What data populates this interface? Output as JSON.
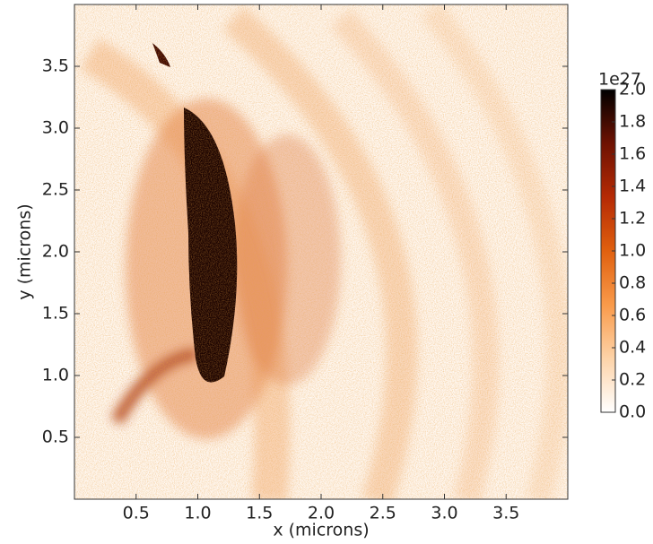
{
  "chart_data": {
    "type": "heatmap",
    "xlabel": "x (microns)",
    "ylabel": "y (microns)",
    "xlim": [
      0,
      4
    ],
    "ylim": [
      0,
      4
    ],
    "xticks": [
      0.5,
      {
        "value": 1,
        "label": "1.0"
      },
      1.5,
      {
        "value": 2,
        "label": "2.0"
      },
      2.5,
      {
        "value": 3,
        "label": "3.0"
      },
      3.5
    ],
    "yticks": [
      0.5,
      {
        "value": 1,
        "label": "1.0"
      },
      1.5,
      {
        "value": 2,
        "label": "2.0"
      },
      2.5,
      {
        "value": 3,
        "label": "3.0"
      },
      3.5
    ],
    "colorbar": {
      "offset_label": "1e27",
      "clim": [
        0,
        2
      ],
      "colormap": [
        "#ffffff",
        "#fdd3a8",
        "#f99a4a",
        "#e0600f",
        "#b52a05",
        "#6e1202",
        "#000000"
      ],
      "ticks": [
        {
          "value": 0,
          "label": "0.0"
        },
        0.2,
        0.4,
        0.6,
        0.8,
        {
          "value": 1,
          "label": "1.0"
        },
        1.2,
        1.4,
        1.6,
        1.8,
        {
          "value": 2,
          "label": "2.0"
        }
      ]
    }
  }
}
